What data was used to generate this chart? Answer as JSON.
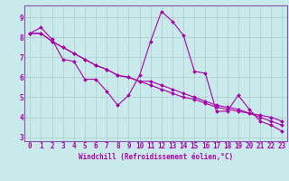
{
  "xlabel": "Windchill (Refroidissement éolien,°C)",
  "bg_color": "#c8eaea",
  "line_color": "#aa00aa",
  "tick_color": "#aa00aa",
  "grid_color": "#aacccc",
  "spine_color": "#8855aa",
  "xlim": [
    -0.5,
    23.5
  ],
  "ylim": [
    2.8,
    9.6
  ],
  "yticks": [
    3,
    4,
    5,
    6,
    7,
    8,
    9
  ],
  "xticks": [
    0,
    1,
    2,
    3,
    4,
    5,
    6,
    7,
    8,
    9,
    10,
    11,
    12,
    13,
    14,
    15,
    16,
    17,
    18,
    19,
    20,
    21,
    22,
    23
  ],
  "series": [
    [
      8.2,
      8.5,
      7.9,
      6.9,
      6.8,
      5.9,
      5.9,
      5.3,
      4.6,
      5.1,
      6.1,
      7.8,
      9.3,
      8.8,
      8.1,
      6.3,
      6.2,
      4.3,
      4.3,
      5.1,
      4.4,
      3.8,
      3.6,
      3.3
    ],
    [
      8.2,
      8.2,
      7.8,
      7.5,
      7.2,
      6.9,
      6.6,
      6.4,
      6.1,
      6.0,
      5.8,
      5.6,
      5.4,
      5.2,
      5.0,
      4.9,
      4.7,
      4.5,
      4.4,
      4.3,
      4.2,
      4.1,
      4.0,
      3.8
    ],
    [
      8.2,
      8.2,
      7.8,
      7.5,
      7.2,
      6.9,
      6.6,
      6.4,
      6.1,
      6.0,
      5.8,
      5.8,
      5.6,
      5.4,
      5.2,
      5.0,
      4.8,
      4.6,
      4.5,
      4.4,
      4.2,
      4.0,
      3.8,
      3.6
    ]
  ],
  "label_fontsize": 5.0,
  "tick_fontsize": 5.5,
  "xlabel_fontsize": 5.5,
  "linewidth": 0.8,
  "markersize": 2.0
}
